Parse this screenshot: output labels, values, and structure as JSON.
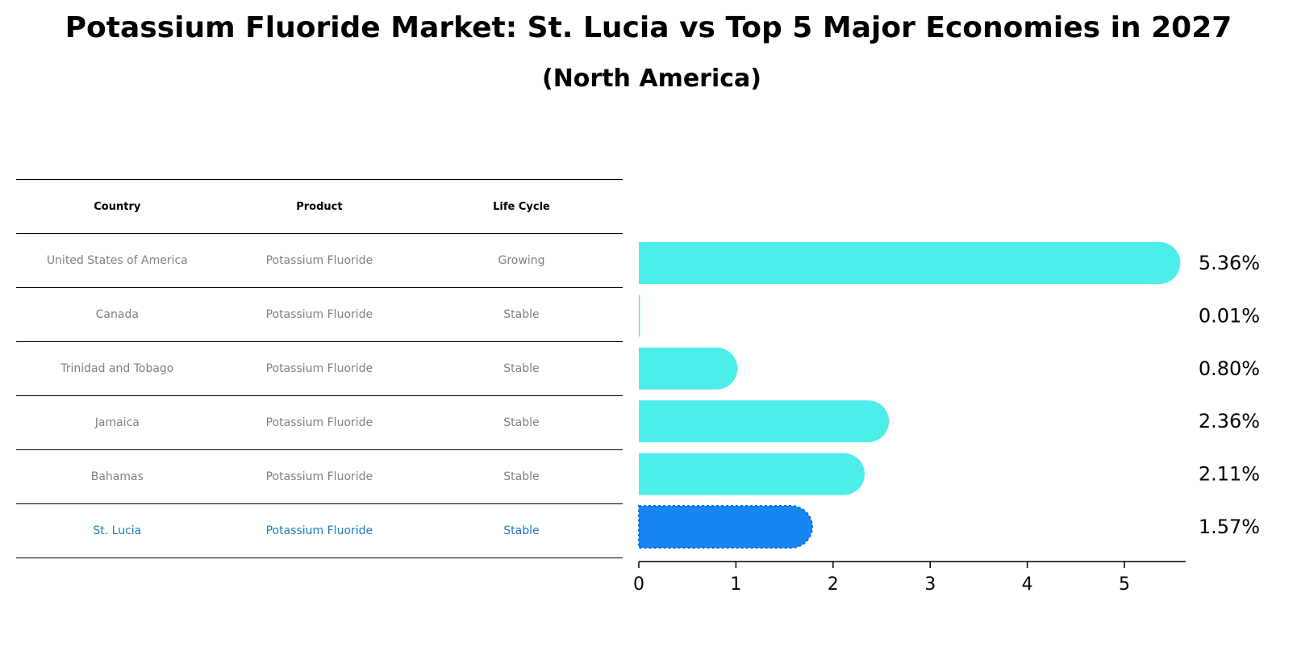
{
  "title": "Potassium Fluoride Market: St. Lucia vs Top 5 Major Economies in 2027",
  "subtitle": "(North America)",
  "table": {
    "headers": [
      "Country",
      "Product",
      "Life Cycle"
    ],
    "rows": [
      [
        "United States of America",
        "Potassium Fluoride",
        "Growing"
      ],
      [
        "Canada",
        "Potassium Fluoride",
        "Stable"
      ],
      [
        "Trinidad and Tobago",
        "Potassium Fluoride",
        "Stable"
      ],
      [
        "Jamaica",
        "Potassium Fluoride",
        "Stable"
      ],
      [
        "Bahamas",
        "Potassium Fluoride",
        "Stable"
      ],
      [
        "St. Lucia",
        "Potassium Fluoride",
        "Stable"
      ]
    ],
    "highlight_row": 5
  },
  "chart_data": {
    "type": "bar",
    "orientation": "horizontal",
    "title": "Potassium Fluoride Market: St. Lucia vs Top 5 Major Economies in 2027",
    "subtitle": "(North America)",
    "categories": [
      "United States of America",
      "Canada",
      "Trinidad and Tobago",
      "Jamaica",
      "Bahamas",
      "St. Lucia"
    ],
    "values": [
      5.36,
      0.01,
      0.8,
      2.36,
      2.11,
      1.57
    ],
    "value_labels": [
      "5.36%",
      "0.01%",
      "0.80%",
      "2.36%",
      "2.11%",
      "1.57%"
    ],
    "xlim": [
      0,
      5.63
    ],
    "xticks": [
      "0",
      "1",
      "2",
      "3",
      "4",
      "5"
    ],
    "xlabel": "",
    "ylabel": "",
    "grid": false,
    "colors": {
      "default": "#4deeea",
      "highlight": "#1785f2"
    },
    "highlight_index": 5
  }
}
